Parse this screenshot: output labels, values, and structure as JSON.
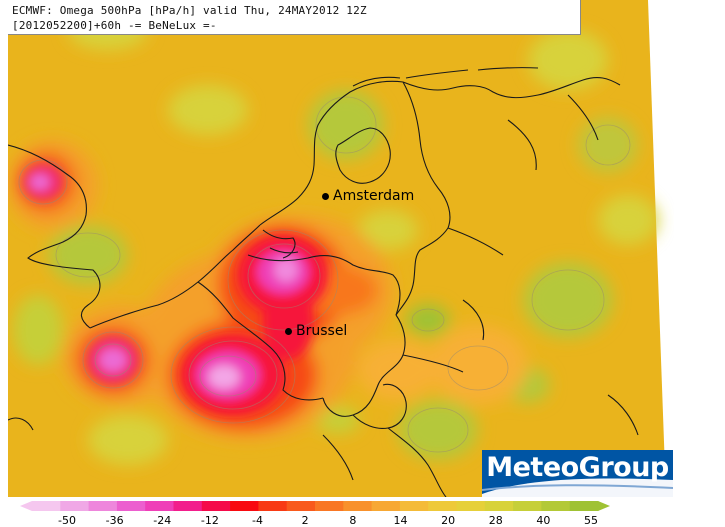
{
  "header": {
    "line1": "ECMWF: Omega 500hPa [hPa/h] valid Thu, 24MAY2012 12Z",
    "line2": "[2012052200]+60h -= BeNeLux =-"
  },
  "cities": [
    {
      "name": "Amsterdam"
    },
    {
      "name": "Brussel"
    }
  ],
  "logo": {
    "text": "MeteoGroup",
    "color": "#0055a4"
  },
  "colorbar": {
    "tick_labels": [
      "-50",
      "-36",
      "-24",
      "-12",
      "-4",
      "2",
      "8",
      "14",
      "20",
      "28",
      "40",
      "55"
    ],
    "colors": [
      "#f5c7ef",
      "#f0a8e6",
      "#ee86dc",
      "#ec5fcf",
      "#ef3fb8",
      "#f21e8c",
      "#f50a4a",
      "#f80a10",
      "#f83a14",
      "#f95a1c",
      "#f97724",
      "#f8912c",
      "#f7a834",
      "#f4bb38",
      "#eec93a",
      "#e6d03a",
      "#d8d23a",
      "#c6cf38",
      "#b3c936",
      "#9fc234"
    ]
  },
  "map_colors": {
    "background": "#e8b21c",
    "green": "#a8c83a",
    "orange": "#f09030",
    "red": "#f22a1c",
    "magenta": "#f0489c"
  }
}
